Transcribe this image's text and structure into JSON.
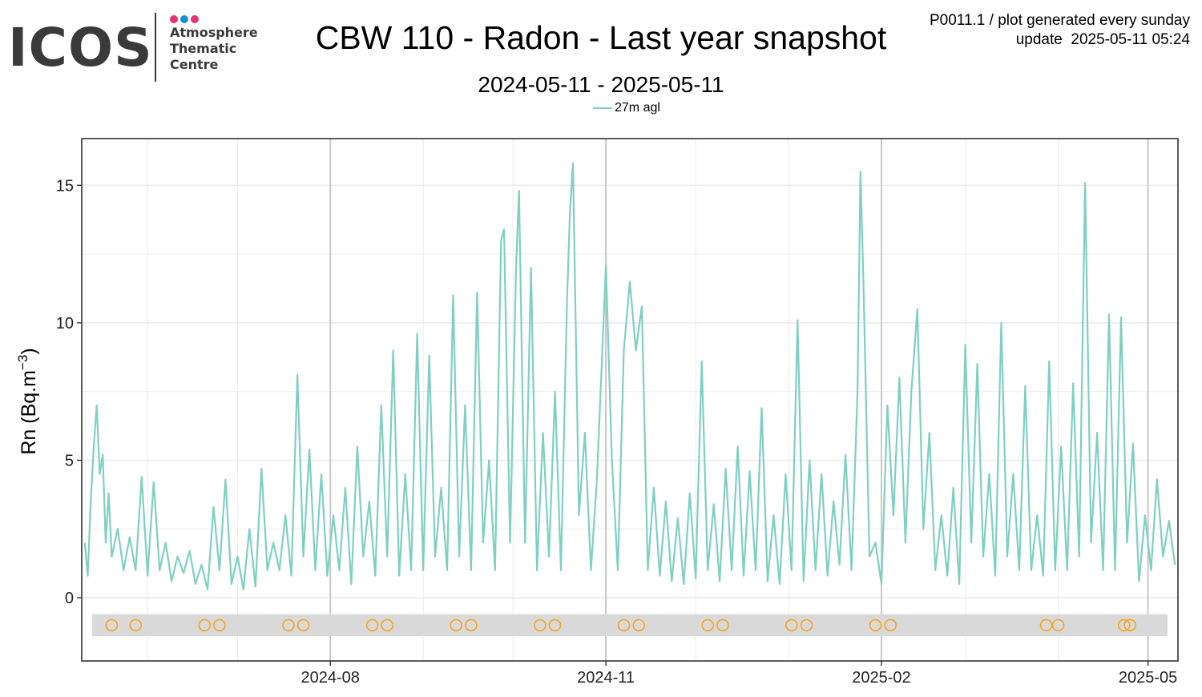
{
  "logo": {
    "main": "ICOS",
    "line1": "Atmosphere",
    "line2": "Thematic",
    "line3": "Centre",
    "dot_colors": [
      "#e6336b",
      "#1a8fd6",
      "#e6336b"
    ]
  },
  "header": {
    "title": "CBW 110 - Radon - Last year snapshot",
    "subtitle": "2024-05-11 - 2025-05-11",
    "meta_line1": "P0011.1 / plot generated every sunday",
    "meta_line2": "update  2025-05-11 05:24"
  },
  "colors": {
    "series": "#7fcfc2",
    "markers": "#f5a623",
    "band": "#d9d9d9",
    "grid": "#ebebeb",
    "month_lines": "#c8c8c8"
  },
  "chart_data": {
    "type": "line",
    "title": "CBW 110 - Radon - Last year snapshot",
    "subtitle": "2024-05-11 - 2025-05-11",
    "xlabel": "",
    "ylabel": "Rn (Bq.m-3)",
    "ylabel_parts": {
      "base": "Rn (Bq.m",
      "sup": "−3",
      "close": ")"
    },
    "x_type": "date",
    "xlim": [
      "2024-05-10",
      "2025-05-11"
    ],
    "ylim": [
      -2.3,
      16.7
    ],
    "y_ticks": [
      0,
      5,
      10,
      15
    ],
    "x_ticks": [
      "2024-08",
      "2024-11",
      "2025-02",
      "2025-05"
    ],
    "x_tick_dates": [
      "2024-08-01",
      "2024-11-01",
      "2025-02-01",
      "2025-05-01"
    ],
    "grid": true,
    "legend_position": "top",
    "series": [
      {
        "name": "27m agl",
        "color": "#7fcfc2",
        "points": [
          [
            "2024-05-11",
            2.0
          ],
          [
            "2024-05-12",
            0.8
          ],
          [
            "2024-05-13",
            3.5
          ],
          [
            "2024-05-14",
            5.5
          ],
          [
            "2024-05-15",
            7.0
          ],
          [
            "2024-05-16",
            4.5
          ],
          [
            "2024-05-17",
            5.2
          ],
          [
            "2024-05-18",
            2.0
          ],
          [
            "2024-05-19",
            3.8
          ],
          [
            "2024-05-20",
            1.5
          ],
          [
            "2024-05-22",
            2.5
          ],
          [
            "2024-05-24",
            1.0
          ],
          [
            "2024-05-26",
            2.2
          ],
          [
            "2024-05-28",
            1.0
          ],
          [
            "2024-05-30",
            4.4
          ],
          [
            "2024-06-01",
            0.8
          ],
          [
            "2024-06-03",
            4.2
          ],
          [
            "2024-06-05",
            1.0
          ],
          [
            "2024-06-07",
            2.0
          ],
          [
            "2024-06-09",
            0.6
          ],
          [
            "2024-06-11",
            1.5
          ],
          [
            "2024-06-13",
            0.9
          ],
          [
            "2024-06-15",
            1.7
          ],
          [
            "2024-06-17",
            0.5
          ],
          [
            "2024-06-19",
            1.2
          ],
          [
            "2024-06-21",
            0.3
          ],
          [
            "2024-06-23",
            3.3
          ],
          [
            "2024-06-25",
            1.0
          ],
          [
            "2024-06-27",
            4.3
          ],
          [
            "2024-06-29",
            0.5
          ],
          [
            "2024-07-01",
            1.5
          ],
          [
            "2024-07-03",
            0.3
          ],
          [
            "2024-07-05",
            2.5
          ],
          [
            "2024-07-07",
            0.4
          ],
          [
            "2024-07-09",
            4.7
          ],
          [
            "2024-07-11",
            1.0
          ],
          [
            "2024-07-13",
            2.0
          ],
          [
            "2024-07-15",
            1.0
          ],
          [
            "2024-07-17",
            3.0
          ],
          [
            "2024-07-19",
            0.8
          ],
          [
            "2024-07-21",
            8.1
          ],
          [
            "2024-07-23",
            1.5
          ],
          [
            "2024-07-25",
            5.4
          ],
          [
            "2024-07-27",
            1.0
          ],
          [
            "2024-07-29",
            4.5
          ],
          [
            "2024-07-31",
            0.8
          ],
          [
            "2024-08-02",
            3.0
          ],
          [
            "2024-08-04",
            1.0
          ],
          [
            "2024-08-06",
            4.0
          ],
          [
            "2024-08-08",
            0.5
          ],
          [
            "2024-08-10",
            5.5
          ],
          [
            "2024-08-12",
            1.5
          ],
          [
            "2024-08-14",
            3.5
          ],
          [
            "2024-08-16",
            0.8
          ],
          [
            "2024-08-18",
            7.0
          ],
          [
            "2024-08-20",
            1.5
          ],
          [
            "2024-08-22",
            9.0
          ],
          [
            "2024-08-24",
            0.8
          ],
          [
            "2024-08-26",
            4.5
          ],
          [
            "2024-08-28",
            1.0
          ],
          [
            "2024-08-30",
            9.6
          ],
          [
            "2024-09-01",
            1.0
          ],
          [
            "2024-09-03",
            8.8
          ],
          [
            "2024-09-05",
            1.5
          ],
          [
            "2024-09-07",
            4.0
          ],
          [
            "2024-09-09",
            1.0
          ],
          [
            "2024-09-11",
            11.0
          ],
          [
            "2024-09-13",
            1.5
          ],
          [
            "2024-09-15",
            7.0
          ],
          [
            "2024-09-17",
            1.0
          ],
          [
            "2024-09-19",
            11.1
          ],
          [
            "2024-09-21",
            2.0
          ],
          [
            "2024-09-23",
            5.0
          ],
          [
            "2024-09-25",
            1.0
          ],
          [
            "2024-09-27",
            13.0
          ],
          [
            "2024-09-28",
            13.4
          ],
          [
            "2024-09-30",
            2.0
          ],
          [
            "2024-10-02",
            12.0
          ],
          [
            "2024-10-03",
            14.8
          ],
          [
            "2024-10-05",
            2.0
          ],
          [
            "2024-10-07",
            12.0
          ],
          [
            "2024-10-09",
            1.0
          ],
          [
            "2024-10-11",
            6.0
          ],
          [
            "2024-10-13",
            1.5
          ],
          [
            "2024-10-15",
            7.5
          ],
          [
            "2024-10-17",
            1.0
          ],
          [
            "2024-10-19",
            10.7
          ],
          [
            "2024-10-20",
            14.0
          ],
          [
            "2024-10-21",
            15.8
          ],
          [
            "2024-10-23",
            3.0
          ],
          [
            "2024-10-25",
            6.0
          ],
          [
            "2024-10-27",
            1.0
          ],
          [
            "2024-10-29",
            4.3
          ],
          [
            "2024-10-31",
            9.5
          ],
          [
            "2024-11-01",
            12.1
          ],
          [
            "2024-11-03",
            5.0
          ],
          [
            "2024-11-05",
            1.0
          ],
          [
            "2024-11-07",
            9.0
          ],
          [
            "2024-11-09",
            11.5
          ],
          [
            "2024-11-11",
            9.0
          ],
          [
            "2024-11-13",
            10.6
          ],
          [
            "2024-11-15",
            1.0
          ],
          [
            "2024-11-17",
            4.0
          ],
          [
            "2024-11-19",
            0.8
          ],
          [
            "2024-11-21",
            3.5
          ],
          [
            "2024-11-23",
            0.6
          ],
          [
            "2024-11-25",
            2.9
          ],
          [
            "2024-11-27",
            0.5
          ],
          [
            "2024-11-29",
            3.8
          ],
          [
            "2024-12-01",
            0.7
          ],
          [
            "2024-12-03",
            8.6
          ],
          [
            "2024-12-05",
            1.0
          ],
          [
            "2024-12-07",
            3.4
          ],
          [
            "2024-12-09",
            0.6
          ],
          [
            "2024-12-11",
            4.7
          ],
          [
            "2024-12-13",
            1.0
          ],
          [
            "2024-12-15",
            5.5
          ],
          [
            "2024-12-17",
            0.8
          ],
          [
            "2024-12-19",
            4.6
          ],
          [
            "2024-12-21",
            1.0
          ],
          [
            "2024-12-23",
            6.9
          ],
          [
            "2024-12-25",
            0.6
          ],
          [
            "2024-12-27",
            3.0
          ],
          [
            "2024-12-29",
            0.5
          ],
          [
            "2024-12-31",
            4.5
          ],
          [
            "2025-01-02",
            1.0
          ],
          [
            "2025-01-04",
            10.1
          ],
          [
            "2025-01-06",
            0.6
          ],
          [
            "2025-01-08",
            5.0
          ],
          [
            "2025-01-10",
            1.0
          ],
          [
            "2025-01-12",
            4.5
          ],
          [
            "2025-01-14",
            0.8
          ],
          [
            "2025-01-16",
            3.5
          ],
          [
            "2025-01-18",
            1.2
          ],
          [
            "2025-01-20",
            5.2
          ],
          [
            "2025-01-22",
            1.0
          ],
          [
            "2025-01-24",
            7.5
          ],
          [
            "2025-01-25",
            15.5
          ],
          [
            "2025-01-26",
            11.5
          ],
          [
            "2025-01-28",
            1.5
          ],
          [
            "2025-01-30",
            2.0
          ],
          [
            "2025-02-01",
            0.5
          ],
          [
            "2025-02-03",
            7.0
          ],
          [
            "2025-02-05",
            3.0
          ],
          [
            "2025-02-07",
            8.0
          ],
          [
            "2025-02-09",
            2.0
          ],
          [
            "2025-02-11",
            7.5
          ],
          [
            "2025-02-13",
            10.5
          ],
          [
            "2025-02-15",
            2.5
          ],
          [
            "2025-02-17",
            6.0
          ],
          [
            "2025-02-19",
            1.0
          ],
          [
            "2025-02-21",
            3.0
          ],
          [
            "2025-02-23",
            0.8
          ],
          [
            "2025-02-25",
            4.0
          ],
          [
            "2025-02-27",
            0.5
          ],
          [
            "2025-03-01",
            9.2
          ],
          [
            "2025-03-03",
            2.0
          ],
          [
            "2025-03-05",
            8.5
          ],
          [
            "2025-03-07",
            1.5
          ],
          [
            "2025-03-09",
            4.5
          ],
          [
            "2025-03-11",
            0.8
          ],
          [
            "2025-03-13",
            10.0
          ],
          [
            "2025-03-15",
            1.5
          ],
          [
            "2025-03-17",
            4.5
          ],
          [
            "2025-03-19",
            1.0
          ],
          [
            "2025-03-21",
            7.7
          ],
          [
            "2025-03-23",
            1.0
          ],
          [
            "2025-03-25",
            3.0
          ],
          [
            "2025-03-27",
            0.8
          ],
          [
            "2025-03-29",
            8.6
          ],
          [
            "2025-03-31",
            1.0
          ],
          [
            "2025-04-02",
            5.5
          ],
          [
            "2025-04-04",
            1.0
          ],
          [
            "2025-04-06",
            7.8
          ],
          [
            "2025-04-08",
            1.5
          ],
          [
            "2025-04-10",
            15.1
          ],
          [
            "2025-04-12",
            2.0
          ],
          [
            "2025-04-14",
            6.0
          ],
          [
            "2025-04-16",
            1.0
          ],
          [
            "2025-04-18",
            10.3
          ],
          [
            "2025-04-20",
            1.0
          ],
          [
            "2025-04-22",
            10.2
          ],
          [
            "2025-04-24",
            2.0
          ],
          [
            "2025-04-26",
            5.6
          ],
          [
            "2025-04-28",
            0.6
          ],
          [
            "2025-04-30",
            3.0
          ],
          [
            "2025-05-02",
            1.0
          ],
          [
            "2025-05-04",
            4.3
          ],
          [
            "2025-05-06",
            1.5
          ],
          [
            "2025-05-08",
            2.8
          ],
          [
            "2025-05-10",
            1.2
          ]
        ]
      }
    ],
    "markers": {
      "y": -1.0,
      "band": [
        -1.4,
        -0.6
      ],
      "dates": [
        "2024-05-20",
        "2024-05-28",
        "2024-06-20",
        "2024-06-25",
        "2024-07-18",
        "2024-07-23",
        "2024-08-15",
        "2024-08-20",
        "2024-09-12",
        "2024-09-17",
        "2024-10-10",
        "2024-10-15",
        "2024-11-07",
        "2024-11-12",
        "2024-12-05",
        "2024-12-10",
        "2025-01-02",
        "2025-01-07",
        "2025-01-30",
        "2025-02-04",
        "2025-03-28",
        "2025-04-01",
        "2025-04-23",
        "2025-04-25"
      ]
    }
  }
}
